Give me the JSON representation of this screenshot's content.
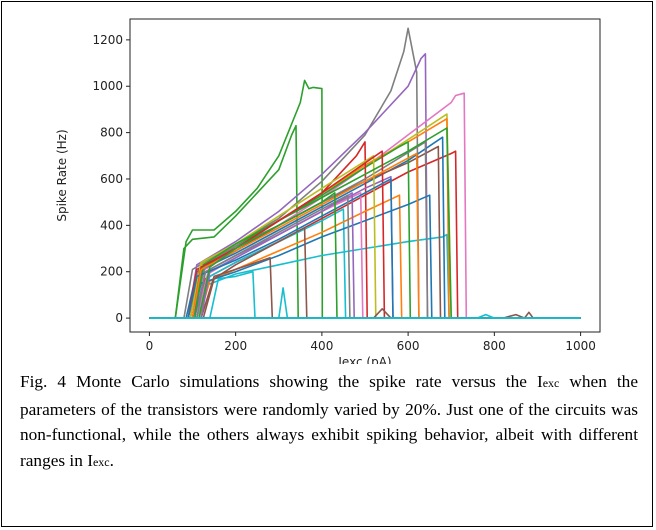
{
  "figure": {
    "caption_prefix": "Fig. 4 Monte Carlo simulations showing the spike rate versus the ",
    "caption_sym": "I",
    "caption_sub": "exc",
    "caption_mid": " when the parameters of the transistors were randomly varied by 20%. Just one of the circuits was non-functional, while the others always exhibit spiking behavior, albeit with different ranges in ",
    "caption_sym2": "I",
    "caption_sub2": "exc",
    "caption_end": "."
  },
  "chart_data": {
    "type": "line",
    "xlabel": "Iexc (pA)",
    "ylabel": "Spike Rate (Hz)",
    "xlim": [
      -45,
      1045
    ],
    "ylim": [
      -60,
      1290
    ],
    "xticks": [
      0,
      200,
      400,
      600,
      800,
      1000
    ],
    "yticks": [
      0,
      200,
      400,
      600,
      800,
      1000,
      1200
    ],
    "grid": false,
    "legend": "none",
    "series": [
      {
        "color": "#2ca02c",
        "x": [
          0,
          60,
          85,
          100,
          150,
          200,
          250,
          300,
          350,
          360,
          370,
          380,
          400,
          401,
          1000
        ],
        "y": [
          0,
          0,
          330,
          380,
          380,
          460,
          560,
          700,
          930,
          1025,
          990,
          995,
          990,
          0,
          0
        ]
      },
      {
        "color": "#2ca02c",
        "x": [
          0,
          60,
          80,
          100,
          150,
          200,
          300,
          330,
          340,
          345,
          1000
        ],
        "y": [
          0,
          0,
          300,
          340,
          350,
          440,
          640,
          790,
          830,
          0,
          0
        ]
      },
      {
        "color": "#7f7f7f",
        "x": [
          0,
          80,
          100,
          200,
          300,
          400,
          500,
          560,
          590,
          600,
          620,
          625,
          1000
        ],
        "y": [
          0,
          0,
          210,
          320,
          430,
          590,
          790,
          980,
          1150,
          1250,
          1060,
          0,
          0
        ]
      },
      {
        "color": "#9467bd",
        "x": [
          0,
          90,
          110,
          200,
          300,
          400,
          500,
          600,
          630,
          640,
          645,
          1000
        ],
        "y": [
          0,
          0,
          230,
          330,
          460,
          620,
          800,
          1000,
          1120,
          1140,
          0,
          0
        ]
      },
      {
        "color": "#e377c2",
        "x": [
          0,
          100,
          120,
          200,
          300,
          400,
          500,
          600,
          700,
          710,
          730,
          735,
          1000
        ],
        "y": [
          0,
          0,
          200,
          290,
          400,
          520,
          650,
          790,
          930,
          960,
          970,
          0,
          0
        ]
      },
      {
        "color": "#d62728",
        "x": [
          0,
          110,
          130,
          200,
          300,
          400,
          500,
          600,
          700,
          710,
          715,
          1000
        ],
        "y": [
          0,
          0,
          170,
          240,
          330,
          430,
          530,
          630,
          710,
          720,
          0,
          0
        ]
      },
      {
        "color": "#17becf",
        "x": [
          0,
          100,
          130,
          200,
          300,
          400,
          500,
          600,
          680,
          690,
          695,
          1000
        ],
        "y": [
          0,
          0,
          140,
          190,
          230,
          270,
          300,
          330,
          350,
          360,
          0,
          0
        ]
      },
      {
        "color": "#bcbd22",
        "x": [
          0,
          95,
          120,
          200,
          300,
          400,
          500,
          600,
          690,
          700,
          1000
        ],
        "y": [
          0,
          0,
          230,
          310,
          420,
          540,
          650,
          770,
          880,
          0,
          0
        ]
      },
      {
        "color": "#ff7f0e",
        "x": [
          0,
          90,
          120,
          200,
          300,
          400,
          500,
          600,
          690,
          695,
          1000
        ],
        "y": [
          0,
          0,
          220,
          300,
          420,
          540,
          660,
          760,
          860,
          0,
          0
        ]
      },
      {
        "color": "#1f77b4",
        "x": [
          0,
          85,
          110,
          200,
          300,
          400,
          500,
          600,
          680,
          685,
          1000
        ],
        "y": [
          0,
          0,
          200,
          280,
          380,
          480,
          580,
          680,
          780,
          0,
          0
        ]
      },
      {
        "color": "#8c564b",
        "x": [
          0,
          95,
          115,
          200,
          300,
          400,
          500,
          600,
          670,
          675,
          1000
        ],
        "y": [
          0,
          0,
          210,
          290,
          400,
          500,
          590,
          670,
          740,
          0,
          0
        ]
      },
      {
        "color": "#2ca02c",
        "x": [
          0,
          100,
          125,
          200,
          300,
          400,
          500,
          580,
          600,
          605,
          1000
        ],
        "y": [
          0,
          0,
          220,
          310,
          420,
          530,
          650,
          740,
          760,
          0,
          0
        ]
      },
      {
        "color": "#d62728",
        "x": [
          0,
          90,
          110,
          200,
          300,
          400,
          480,
          500,
          505,
          1000
        ],
        "y": [
          0,
          0,
          210,
          300,
          420,
          540,
          700,
          760,
          0,
          0
        ]
      },
      {
        "color": "#9467bd",
        "x": [
          0,
          105,
          130,
          200,
          300,
          400,
          500,
          560,
          565,
          1000
        ],
        "y": [
          0,
          0,
          200,
          270,
          360,
          460,
          560,
          610,
          0,
          0
        ]
      },
      {
        "color": "#17becf",
        "x": [
          0,
          110,
          140,
          200,
          300,
          400,
          450,
          455,
          1000
        ],
        "y": [
          0,
          0,
          180,
          240,
          330,
          420,
          470,
          0,
          0
        ]
      },
      {
        "color": "#7f7f7f",
        "x": [
          0,
          100,
          130,
          200,
          300,
          400,
          500,
          640,
          645,
          1000
        ],
        "y": [
          0,
          0,
          230,
          310,
          400,
          500,
          600,
          760,
          0,
          0
        ]
      },
      {
        "color": "#ff7f0e",
        "x": [
          0,
          115,
          140,
          200,
          300,
          400,
          500,
          580,
          585,
          1000
        ],
        "y": [
          0,
          0,
          160,
          210,
          290,
          370,
          460,
          530,
          0,
          0
        ]
      },
      {
        "color": "#1f77b4",
        "x": [
          0,
          100,
          120,
          200,
          300,
          400,
          500,
          600,
          650,
          655,
          1000
        ],
        "y": [
          0,
          0,
          150,
          200,
          270,
          350,
          420,
          490,
          530,
          0,
          0
        ]
      },
      {
        "color": "#8c564b",
        "x": [
          0,
          120,
          150,
          200,
          280,
          285,
          1000
        ],
        "y": [
          0,
          0,
          180,
          210,
          260,
          0,
          0
        ]
      },
      {
        "color": "#e377c2",
        "x": [
          0,
          110,
          135,
          200,
          300,
          400,
          490,
          495,
          1000
        ],
        "y": [
          0,
          0,
          190,
          260,
          360,
          460,
          540,
          0,
          0
        ]
      },
      {
        "color": "#bcbd22",
        "x": [
          0,
          95,
          120,
          200,
          300,
          400,
          520,
          525,
          1000
        ],
        "y": [
          0,
          0,
          240,
          320,
          440,
          560,
          700,
          0,
          0
        ]
      },
      {
        "color": "#2ca02c",
        "x": [
          0,
          105,
          125,
          200,
          300,
          400,
          500,
          600,
          690,
          700,
          1000
        ],
        "y": [
          0,
          0,
          230,
          320,
          420,
          520,
          620,
          720,
          820,
          0,
          0
        ]
      },
      {
        "color": "#d62728",
        "x": [
          0,
          100,
          120,
          200,
          300,
          400,
          540,
          545,
          1000
        ],
        "y": [
          0,
          0,
          220,
          300,
          420,
          540,
          720,
          0,
          0
        ]
      },
      {
        "color": "#17becf",
        "x": [
          0,
          140,
          160,
          200,
          240,
          245,
          1000
        ],
        "y": [
          0,
          0,
          170,
          180,
          200,
          0,
          0
        ]
      },
      {
        "color": "#9467bd",
        "x": [
          0,
          120,
          140,
          200,
          300,
          400,
          470,
          475,
          1000
        ],
        "y": [
          0,
          0,
          200,
          260,
          360,
          460,
          540,
          0,
          0
        ]
      },
      {
        "color": "#1f77b4",
        "x": [
          0,
          90,
          110,
          200,
          300,
          400,
          500,
          560,
          565,
          1000
        ],
        "y": [
          0,
          0,
          180,
          250,
          340,
          440,
          540,
          600,
          0,
          0
        ]
      },
      {
        "color": "#ff7f0e",
        "x": [
          0,
          100,
          120,
          200,
          300,
          400,
          500,
          600,
          620,
          625,
          1000
        ],
        "y": [
          0,
          0,
          210,
          290,
          390,
          490,
          590,
          690,
          710,
          0,
          0
        ]
      },
      {
        "color": "#7f7f7f",
        "x": [
          0,
          110,
          130,
          200,
          300,
          400,
          460,
          465,
          1000
        ],
        "y": [
          0,
          0,
          200,
          270,
          370,
          470,
          530,
          0,
          0
        ]
      },
      {
        "color": "#8c564b",
        "x": [
          0,
          125,
          150,
          200,
          300,
          360,
          365,
          1000
        ],
        "y": [
          0,
          0,
          170,
          230,
          330,
          390,
          0,
          0
        ]
      },
      {
        "color": "#2ca02c",
        "x": [
          0,
          115,
          140,
          200,
          300,
          400,
          430,
          435,
          1000
        ],
        "y": [
          0,
          0,
          220,
          300,
          400,
          500,
          540,
          0,
          0
        ]
      },
      {
        "color": "#17becf",
        "x": [
          0,
          300,
          310,
          320,
          1000
        ],
        "y": [
          0,
          0,
          130,
          0,
          0
        ]
      },
      {
        "color": "#8c564b",
        "x": [
          0,
          520,
          540,
          560,
          1000
        ],
        "y": [
          0,
          0,
          40,
          0,
          0
        ]
      },
      {
        "color": "#8c564b",
        "x": [
          0,
          820,
          850,
          870,
          880,
          890,
          1000
        ],
        "y": [
          0,
          0,
          15,
          0,
          25,
          0,
          0
        ]
      },
      {
        "color": "#17becf",
        "x": [
          0,
          760,
          780,
          800,
          1000
        ],
        "y": [
          0,
          0,
          15,
          0,
          0
        ]
      },
      {
        "color": "#17becf",
        "x": [
          0,
          1000
        ],
        "y": [
          0,
          0
        ]
      }
    ]
  }
}
